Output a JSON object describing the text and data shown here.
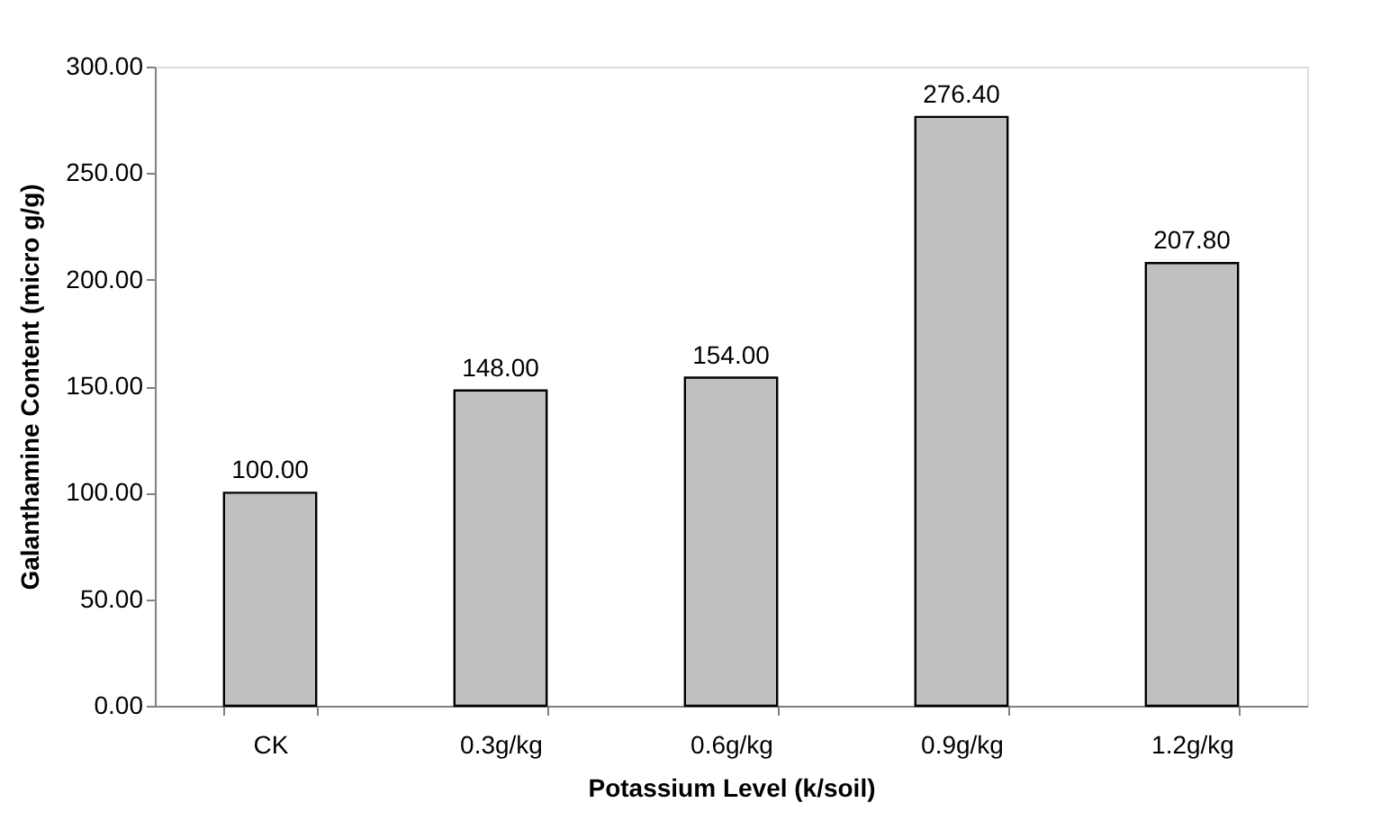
{
  "chart_data": {
    "type": "bar",
    "xlabel": "Potassium Level (k/soil)",
    "ylabel": "Galanthamine Content (micro g/g)",
    "categories": [
      "CK",
      "0.3g/kg",
      "0.6g/kg",
      "0.9g/kg",
      "1.2g/kg"
    ],
    "values": [
      100.0,
      148.0,
      154.0,
      276.4,
      207.8
    ],
    "value_labels": [
      "100.00",
      "148.00",
      "154.00",
      "276.40",
      "207.80"
    ],
    "color": "#c0c0c0",
    "ylim": [
      0,
      300
    ],
    "yticks": [
      {
        "value": 0,
        "label": "0.00"
      },
      {
        "value": 50,
        "label": "50.00"
      },
      {
        "value": 100,
        "label": "100.00"
      },
      {
        "value": 150,
        "label": "150.00"
      },
      {
        "value": 200,
        "label": "200.00"
      },
      {
        "value": 250,
        "label": "250.00"
      },
      {
        "value": 300,
        "label": "300.00"
      }
    ],
    "grid": false
  }
}
